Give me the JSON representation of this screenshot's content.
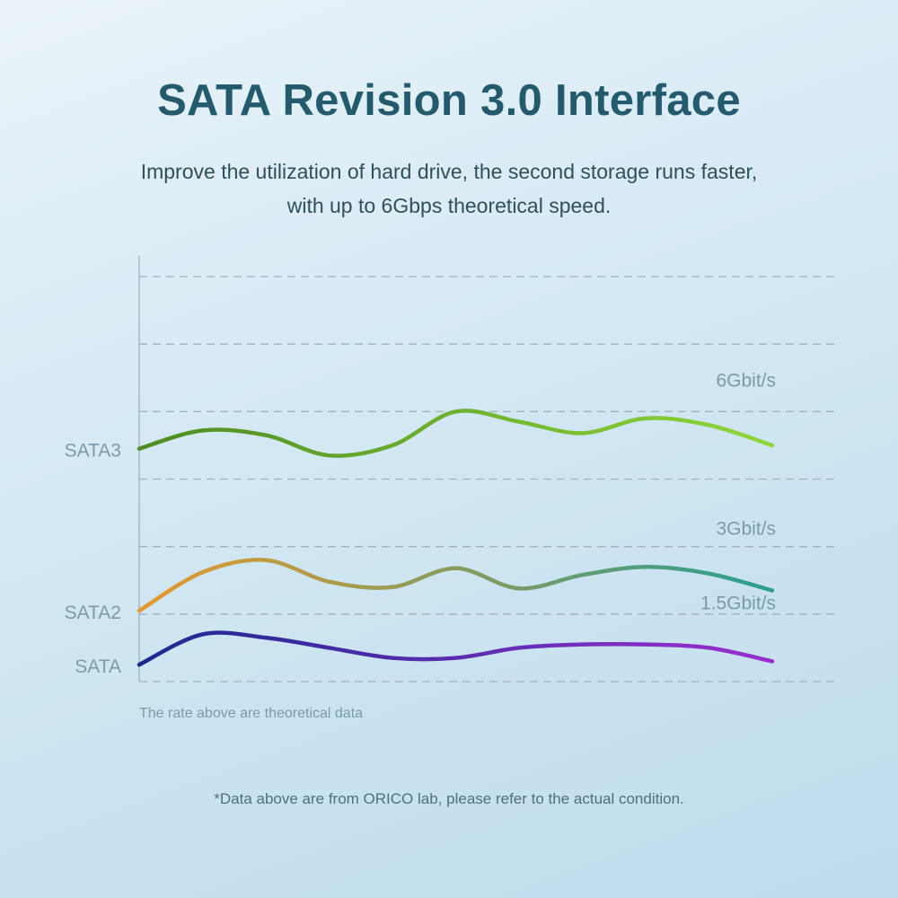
{
  "header": {
    "title": "SATA Revision 3.0 Interface",
    "subtitle_line1": "Improve the utilization of hard drive, the second storage runs faster,",
    "subtitle_line2": "with up to 6Gbps theoretical speed."
  },
  "chart_data": {
    "type": "line",
    "title": "",
    "xlabel": "",
    "ylabel": "",
    "grid": true,
    "grid_style": "dashed",
    "ylim": [
      0,
      6
    ],
    "x": [
      0,
      1,
      2,
      3,
      4,
      5,
      6,
      7,
      8,
      9,
      10
    ],
    "series": [
      {
        "name": "SATA3",
        "rate_label": "6Gbit/s",
        "colors": [
          "#4e8c24",
          "#8fd63a"
        ],
        "values": [
          3.45,
          3.72,
          3.65,
          3.35,
          3.5,
          4.0,
          3.85,
          3.68,
          3.9,
          3.8,
          3.5
        ]
      },
      {
        "name": "SATA2",
        "rate_label": "3Gbit/s",
        "colors": [
          "#e59a2c",
          "#2a9e92"
        ],
        "values": [
          1.05,
          1.62,
          1.8,
          1.48,
          1.4,
          1.68,
          1.38,
          1.58,
          1.7,
          1.6,
          1.35
        ]
      },
      {
        "name": "SATA",
        "rate_label": "1.5Gbit/s",
        "colors": [
          "#1b2a8f",
          "#9a2fd0"
        ],
        "values": [
          0.25,
          0.7,
          0.65,
          0.5,
          0.35,
          0.35,
          0.5,
          0.55,
          0.55,
          0.5,
          0.3
        ]
      }
    ]
  },
  "note": "The rate above are theoretical data",
  "footnote": "*Data above are from ORICO lab, please refer to the actual condition.",
  "colors": {
    "title": "#235a6e",
    "grid": "#9fb3bd",
    "label": "#7d9aa7"
  }
}
